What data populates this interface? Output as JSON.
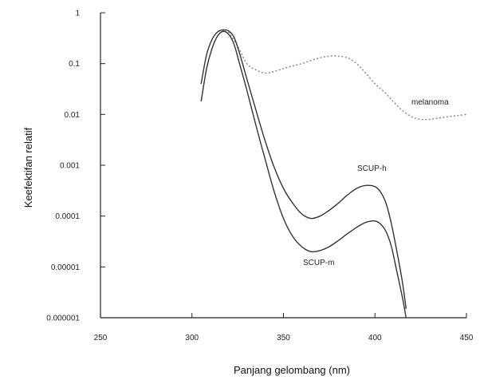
{
  "chart_data": {
    "type": "line",
    "xlabel": "Panjang gelombang (nm)",
    "ylabel": "Keefektifan relatif",
    "xlim": [
      250,
      450
    ],
    "ylim": [
      1e-06,
      1
    ],
    "yscale": "log",
    "x_ticks": [
      250,
      300,
      350,
      400,
      450
    ],
    "x_tick_labels": [
      "250",
      "300",
      "350",
      "400",
      "450"
    ],
    "y_ticks": [
      1,
      0.1,
      0.01,
      0.001,
      0.0001,
      1e-05,
      1e-06
    ],
    "y_tick_labels": [
      "1",
      "0.1",
      "0.01",
      "0.001",
      "0.0001",
      "0.00001",
      "0.000001"
    ],
    "grid": false,
    "series": [
      {
        "name": "melanoma",
        "style": "dotted",
        "color": "#8a8a8a",
        "x": [
          320,
          325,
          330,
          335,
          340,
          345,
          350,
          355,
          360,
          365,
          370,
          375,
          380,
          385,
          390,
          395,
          400,
          405,
          410,
          415,
          420,
          425,
          430,
          435,
          440,
          445,
          450
        ],
        "y": [
          0.42,
          0.22,
          0.1,
          0.075,
          0.065,
          0.07,
          0.08,
          0.09,
          0.1,
          0.115,
          0.13,
          0.14,
          0.14,
          0.13,
          0.1,
          0.065,
          0.04,
          0.028,
          0.018,
          0.012,
          0.009,
          0.008,
          0.008,
          0.0085,
          0.009,
          0.0095,
          0.01
        ]
      },
      {
        "name": "SCUP-h",
        "style": "solid",
        "color": "#333333",
        "x": [
          305,
          308,
          311,
          314,
          317,
          320,
          323,
          326,
          330,
          335,
          340,
          345,
          350,
          355,
          360,
          365,
          370,
          375,
          380,
          385,
          390,
          395,
          400,
          403,
          406,
          409,
          412,
          415,
          417
        ],
        "y": [
          0.04,
          0.15,
          0.3,
          0.42,
          0.46,
          0.44,
          0.33,
          0.16,
          0.05,
          0.012,
          0.003,
          0.0009,
          0.00035,
          0.00018,
          0.00011,
          9e-05,
          0.0001,
          0.00013,
          0.00018,
          0.00026,
          0.00035,
          0.0004,
          0.00038,
          0.0003,
          0.00018,
          7e-05,
          2e-05,
          5e-06,
          1.5e-06
        ]
      },
      {
        "name": "SCUP-m",
        "style": "solid",
        "color": "#333333",
        "x": [
          305,
          308,
          311,
          314,
          317,
          320,
          323,
          326,
          330,
          335,
          340,
          345,
          350,
          355,
          360,
          365,
          370,
          375,
          380,
          385,
          390,
          395,
          400,
          403,
          406,
          409,
          412,
          415,
          417
        ],
        "y": [
          0.018,
          0.08,
          0.2,
          0.35,
          0.43,
          0.38,
          0.24,
          0.1,
          0.03,
          0.006,
          0.0013,
          0.0003,
          9e-05,
          4e-05,
          2.5e-05,
          2e-05,
          2.1e-05,
          2.5e-05,
          3.3e-05,
          4.5e-05,
          6e-05,
          7.5e-05,
          8e-05,
          7e-05,
          5e-05,
          2.5e-05,
          8e-06,
          2.5e-06,
          1e-06
        ]
      }
    ]
  }
}
